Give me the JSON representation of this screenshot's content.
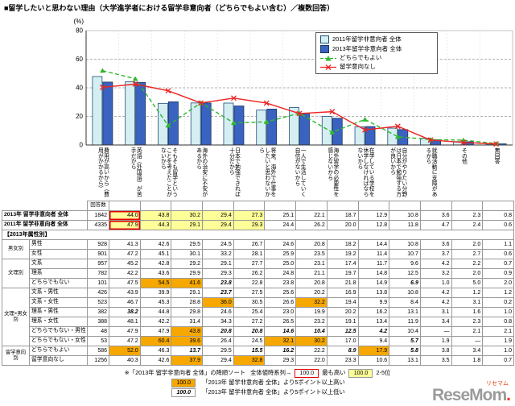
{
  "title": "■留学したいと思わない理由（大学進学者における留学非意向者（どちらでもよい含む）／複数回答）",
  "chart_data": {
    "type": "bar+line",
    "unit_label": "(%)",
    "ylim": [
      0,
      80
    ],
    "yticks": [
      0,
      20,
      40,
      60,
      80
    ],
    "grid": "dashed horizontal",
    "legend_position": "top-right",
    "categories": [
      "費用が高いから（費用がかかるから）",
      "英語（外国語）が苦手だから",
      "そもそも留学ということを考えたことがないから",
      "海外の治安に不安があるから",
      "日本で勉強できれば十分だから",
      "将来、海外で仕事をしたいと思わないから",
      "一人で生活していく自信がないから",
      "海外留学の必要性を感じないから",
      "在学している学校を休学しなければならないから",
      "自分がやりたい分野は日本で勉強する方が良いから",
      "就職活動に支障があるから",
      "その他",
      "無回答"
    ],
    "series": [
      {
        "name": "2011年留学非意向者 全体",
        "type": "bar",
        "color": "#d5eef2",
        "stroke": "#1f4e79",
        "values": [
          47.9,
          44.3,
          29.1,
          29.4,
          29.3,
          24.4,
          26.2,
          20.0,
          12.8,
          11.8,
          4.7,
          2.4,
          0.6
        ]
      },
      {
        "name": "2013年留学非意向者 全体",
        "type": "bar",
        "color": "#3a62c0",
        "stroke": "#17375e",
        "values": [
          44.0,
          43.8,
          30.2,
          29.4,
          27.3,
          25.1,
          22.1,
          18.7,
          12.9,
          10.8,
          3.6,
          2.3,
          0.8
        ]
      },
      {
        "name": "どちらでもよい",
        "type": "line",
        "color": "#2eb82e",
        "marker": "triangle",
        "dash": true,
        "values": [
          52.0,
          46.3,
          13.7,
          29.5,
          15.5,
          16.2,
          22.2,
          8.9,
          17.9,
          5.8,
          3.8,
          3.4,
          1.0
        ]
      },
      {
        "name": "留学意向なし",
        "type": "line",
        "color": "#ee2222",
        "marker": "x",
        "dash": false,
        "values": [
          40.3,
          42.6,
          37.9,
          29.4,
          32.8,
          29.3,
          22.0,
          23.3,
          10.6,
          13.1,
          3.5,
          1.8,
          0.7
        ]
      }
    ]
  },
  "table": {
    "count_header": "回答数",
    "rows": [
      {
        "type": "overall",
        "label": "2013年 留学非意向者 全体",
        "n": "1842",
        "values": [
          "44.0",
          "43.8",
          "30.2",
          "29.4",
          "27.3",
          "25.1",
          "22.1",
          "18.7",
          "12.9",
          "10.8",
          "3.6",
          "2.3",
          "0.8"
        ],
        "marks": [
          "r1",
          "y",
          "y",
          "y",
          "y",
          "",
          "",
          "",
          "",
          "",
          "",
          "",
          ""
        ]
      },
      {
        "type": "overall",
        "label": "2011年 留学非意向者 全体",
        "n": "4335",
        "values": [
          "47.9",
          "44.3",
          "29.1",
          "29.4",
          "29.3",
          "24.4",
          "26.2",
          "20.0",
          "12.8",
          "11.8",
          "4.7",
          "2.4",
          "0.6"
        ],
        "marks": [
          "r1",
          "y",
          "y",
          "y",
          "y",
          "",
          "",
          "",
          "",
          "",
          "",
          "",
          ""
        ]
      },
      {
        "type": "section",
        "label": "【2013年属性別】"
      },
      {
        "type": "attr",
        "group": "男女別",
        "rowspan": 2,
        "label": "男性",
        "n": "928",
        "values": [
          "41.3",
          "42.6",
          "29.5",
          "24.5",
          "26.7",
          "24.6",
          "20.8",
          "18.2",
          "14.4",
          "10.8",
          "3.6",
          "2.0",
          "1.1"
        ],
        "marks": [
          "",
          "",
          "",
          "",
          "",
          "",
          "",
          "",
          "",
          "",
          "",
          "",
          ""
        ]
      },
      {
        "type": "attr",
        "label": "女性",
        "n": "901",
        "values": [
          "47.2",
          "45.1",
          "30.1",
          "33.2",
          "28.1",
          "25.9",
          "23.5",
          "19.2",
          "11.4",
          "10.7",
          "3.7",
          "2.7",
          "0.6"
        ],
        "marks": [
          "",
          "",
          "",
          "",
          "",
          "",
          "",
          "",
          "",
          "",
          "",
          "",
          ""
        ]
      },
      {
        "type": "attr",
        "group": "文理別",
        "rowspan": 3,
        "label": "文系",
        "n": "957",
        "values": [
          "45.2",
          "42.8",
          "29.2",
          "29.1",
          "27.7",
          "25.0",
          "23.1",
          "17.4",
          "11.7",
          "9.6",
          "4.2",
          "2.2",
          "0.7"
        ],
        "marks": [
          "",
          "",
          "",
          "",
          "",
          "",
          "",
          "",
          "",
          "",
          "",
          "",
          ""
        ]
      },
      {
        "type": "attr",
        "label": "理系",
        "n": "782",
        "values": [
          "42.2",
          "43.6",
          "29.9",
          "29.3",
          "26.2",
          "24.8",
          "21.1",
          "19.7",
          "14.8",
          "12.5",
          "3.2",
          "2.0",
          "0.9"
        ],
        "marks": [
          "",
          "",
          "",
          "",
          "",
          "",
          "",
          "",
          "",
          "",
          "",
          "",
          ""
        ]
      },
      {
        "type": "attr",
        "label": "どちらでもない",
        "n": "101",
        "values": [
          "47.5",
          "54.5",
          "41.6",
          "23.8",
          "22.8",
          "23.8",
          "20.8",
          "21.8",
          "14.9",
          "6.9",
          "1.0",
          "5.0",
          "2.0"
        ],
        "marks": [
          "",
          "o",
          "o",
          "i",
          "",
          "",
          "",
          "",
          "",
          "i",
          "",
          "",
          ""
        ]
      },
      {
        "type": "attr",
        "group": "文理×男女別",
        "rowspan": 6,
        "label": "文系・男性",
        "n": "426",
        "values": [
          "43.9",
          "39.9",
          "29.1",
          "23.7",
          "27.5",
          "25.6",
          "20.2",
          "16.9",
          "13.8",
          "10.8",
          "4.2",
          "1.2",
          "1.2"
        ],
        "marks": [
          "",
          "",
          "",
          "i",
          "",
          "",
          "",
          "",
          "",
          "",
          "",
          "",
          ""
        ]
      },
      {
        "type": "attr",
        "label": "文系・女性",
        "n": "523",
        "values": [
          "46.7",
          "45.3",
          "28.8",
          "36.0",
          "30.5",
          "26.6",
          "32.2",
          "19.4",
          "9.9",
          "8.4",
          "4.2",
          "3.1",
          "0.2"
        ],
        "marks": [
          "",
          "",
          "",
          "o",
          "",
          "",
          "o",
          "",
          "",
          "",
          "",
          "",
          ""
        ]
      },
      {
        "type": "attr",
        "label": "理系・男性",
        "n": "382",
        "values": [
          "38.2",
          "44.8",
          "29.8",
          "24.6",
          "25.4",
          "23.0",
          "19.9",
          "20.2",
          "16.2",
          "13.1",
          "3.1",
          "1.6",
          "1.0"
        ],
        "marks": [
          "i",
          "",
          "",
          "",
          "",
          "",
          "",
          "",
          "",
          "",
          "",
          "",
          ""
        ]
      },
      {
        "type": "attr",
        "label": "理系・女性",
        "n": "388",
        "values": [
          "48.1",
          "42.2",
          "31.4",
          "34.3",
          "27.2",
          "26.5",
          "23.2",
          "19.1",
          "13.4",
          "11.9",
          "3.4",
          "2.3",
          "0.8"
        ],
        "marks": [
          "",
          "",
          "",
          "",
          "",
          "",
          "",
          "",
          "",
          "",
          "",
          "",
          ""
        ]
      },
      {
        "type": "attr",
        "label": "どちらでもない・男性",
        "n": "48",
        "values": [
          "47.9",
          "47.9",
          "43.8",
          "20.8",
          "20.8",
          "14.6",
          "10.4",
          "12.5",
          "4.2",
          "10.4",
          "—",
          "2.1",
          "2.1"
        ],
        "marks": [
          "",
          "",
          "o",
          "i",
          "i",
          "i",
          "i",
          "i",
          "i",
          "",
          "",
          "",
          ""
        ]
      },
      {
        "type": "attr",
        "label": "どちらでもない・女性",
        "n": "53",
        "values": [
          "47.2",
          "60.4",
          "39.6",
          "26.4",
          "24.5",
          "32.1",
          "30.2",
          "17.0",
          "9.4",
          "5.7",
          "1.9",
          "—",
          "1.9"
        ],
        "marks": [
          "",
          "o",
          "o",
          "",
          "",
          "o",
          "o",
          "",
          "",
          "i",
          "",
          "",
          ""
        ]
      },
      {
        "type": "attr",
        "group": "留学意向別",
        "rowspan": 2,
        "label": "どちらでもよい",
        "n": "586",
        "values": [
          "52.0",
          "46.3",
          "13.7",
          "29.5",
          "15.5",
          "16.2",
          "22.2",
          "8.9",
          "17.9",
          "5.8",
          "3.8",
          "3.4",
          "1.0"
        ],
        "marks": [
          "o",
          "",
          "i",
          "",
          "i",
          "i",
          "",
          "i",
          "o",
          "i",
          "",
          "",
          ""
        ]
      },
      {
        "type": "attr",
        "label": "留学意向なし",
        "n": "1256",
        "values": [
          "40.3",
          "42.6",
          "37.9",
          "29.4",
          "32.8",
          "29.3",
          "22.0",
          "23.3",
          "10.6",
          "13.1",
          "3.5",
          "1.8",
          "0.7"
        ],
        "marks": [
          "",
          "",
          "o",
          "",
          "o",
          "",
          "",
          "",
          "",
          "",
          "",
          "",
          ""
        ]
      }
    ]
  },
  "notes": {
    "sort_note": "※「2013年 留学非意向者 全体」の降順ソート",
    "ts_label": "全体値時系列→",
    "rank1_value": "100.0",
    "rank1_label": "最も高い",
    "rank25_value": "100.0",
    "rank25_label": "2-5位",
    "higher_value": "100.0",
    "higher_label": "「2013年 留学非意向者 全体」より5ポイント以上高い",
    "lower_value": "100.0",
    "lower_label": "「2013年 留学非意向者 全体」より5ポイント以上低い"
  },
  "watermark": {
    "kana": "リセマム",
    "latin": "ReseMom",
    "dot": "."
  }
}
